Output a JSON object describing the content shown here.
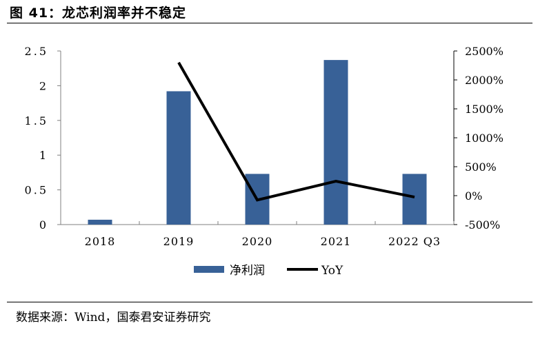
{
  "figure": {
    "title": "图 41：龙芯利润率并不稳定",
    "source": "数据来源：Wind，国泰君安证券研究"
  },
  "chart_data": {
    "type": "bar",
    "categories": [
      "2018",
      "2019",
      "2020",
      "2021",
      "2022 Q3"
    ],
    "series": [
      {
        "name": "净利润",
        "type": "bar",
        "axis": "left",
        "values": [
          0.07,
          1.92,
          0.73,
          2.37,
          0.73
        ],
        "color": "#386197"
      },
      {
        "name": "YoY",
        "type": "line",
        "axis": "right",
        "values": [
          null,
          2300,
          -75,
          250,
          -25
        ],
        "color": "#000000"
      }
    ],
    "y_left": {
      "ylim": [
        0,
        2.5
      ],
      "ticks": [
        "0",
        "0.5",
        "1",
        "1.5",
        "2",
        "2.5"
      ]
    },
    "y_right": {
      "ylim": [
        -500,
        2500
      ],
      "ticks": [
        "-500%",
        "0%",
        "500%",
        "1000%",
        "1500%",
        "2000%",
        "2500%"
      ]
    },
    "legend": {
      "placement": "bottom"
    },
    "grid": false
  }
}
